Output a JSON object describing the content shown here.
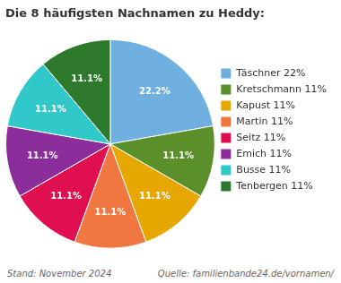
{
  "chart_data": {
    "type": "pie",
    "title": "Die 8 häufigsten Nachnamen zu Heddy:",
    "categories": [
      "Täschner 22%",
      "Kretschmann 11%",
      "Kapust 11%",
      "Martin 11%",
      "Seitz 11%",
      "Emich 11%",
      "Busse 11%",
      "Tenbergen 11%"
    ],
    "values": [
      22.2,
      11.1,
      11.1,
      11.1,
      11.1,
      11.1,
      11.1,
      11.1
    ],
    "value_labels": [
      "22.2%",
      "11.1%",
      "11.1%",
      "11.1%",
      "11.1%",
      "11.1%",
      "11.1%",
      "11.1%"
    ],
    "colors": [
      "#6fb0e0",
      "#5a8f2a",
      "#e6a800",
      "#f07840",
      "#e01050",
      "#8b2d9a",
      "#30c8c8",
      "#2d7a2d"
    ],
    "data_labels": true,
    "legend": "right",
    "annotations": [
      "Stand: November 2024",
      "Quelle: familienbande24.de/vornamen/"
    ]
  }
}
